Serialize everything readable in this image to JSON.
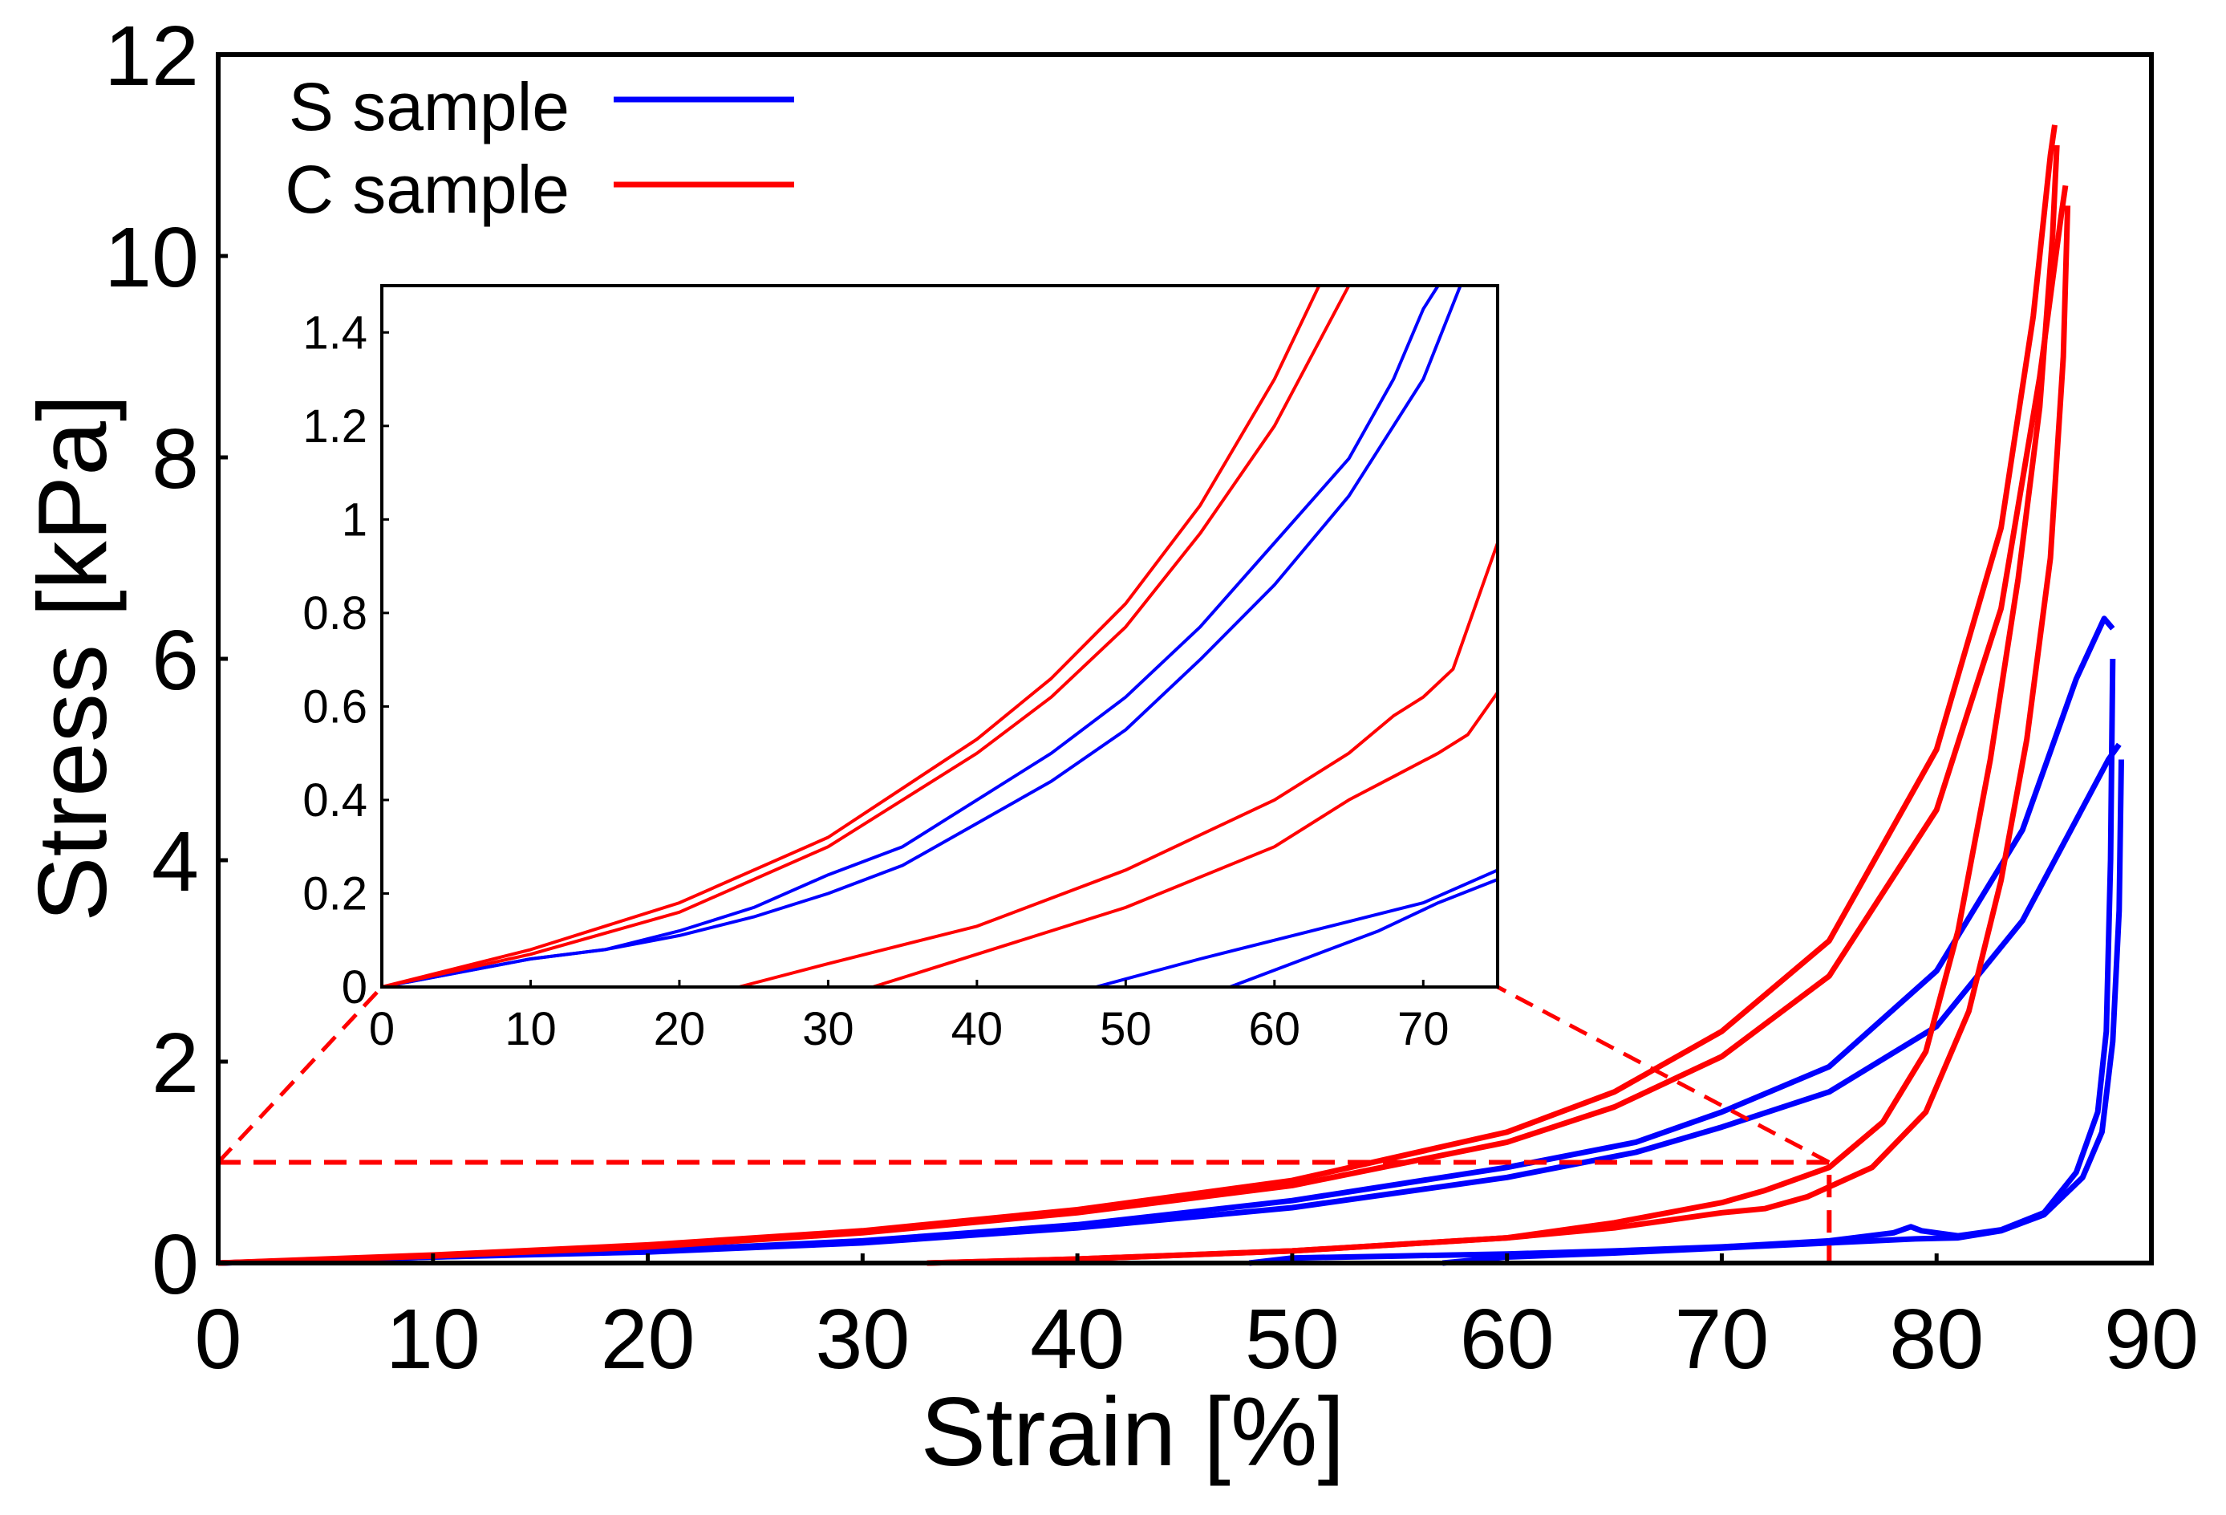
{
  "chart_data": [
    {
      "id": "main",
      "type": "line",
      "xlabel": "Strain [%]",
      "ylabel": "Stress [kPa]",
      "xlim": [
        0,
        90
      ],
      "ylim": [
        0,
        12
      ],
      "xticks": [
        "0",
        "10",
        "20",
        "30",
        "40",
        "50",
        "60",
        "70",
        "80",
        "90"
      ],
      "yticks": [
        "0",
        "2",
        "4",
        "6",
        "8",
        "10",
        "12"
      ],
      "legend_position": "top-left",
      "grid": false,
      "series": [
        {
          "name": "S sample",
          "color": "#0000ff",
          "cycles": [
            {
              "load": [
                [
                  0,
                  0
                ],
                [
                  10,
                  0.06
                ],
                [
                  20,
                  0.12
                ],
                [
                  30,
                  0.22
                ],
                [
                  40,
                  0.38
                ],
                [
                  50,
                  0.62
                ],
                [
                  60,
                  0.95
                ],
                [
                  66,
                  1.2
                ],
                [
                  70,
                  1.5
                ],
                [
                  75,
                  1.95
                ],
                [
                  80,
                  2.9
                ],
                [
                  84,
                  4.3
                ],
                [
                  86.5,
                  5.8
                ],
                [
                  87.8,
                  6.4
                ],
                [
                  88.2,
                  6.3
                ]
              ],
              "unload": [
                [
                  88.2,
                  6.0
                ],
                [
                  88.1,
                  4.0
                ],
                [
                  87.9,
                  2.3
                ],
                [
                  87.5,
                  1.5
                ],
                [
                  86.5,
                  0.9
                ],
                [
                  85,
                  0.5
                ],
                [
                  83,
                  0.33
                ],
                [
                  81,
                  0.27
                ],
                [
                  79.3,
                  0.32
                ],
                [
                  78.8,
                  0.36
                ],
                [
                  78,
                  0.3
                ],
                [
                  75,
                  0.22
                ],
                [
                  70,
                  0.16
                ],
                [
                  65,
                  0.12
                ],
                [
                  60,
                  0.09
                ],
                [
                  55,
                  0.07
                ],
                [
                  50,
                  0.05
                ],
                [
                  48,
                  0.0
                ]
              ]
            },
            {
              "load": [
                [
                  0,
                  0
                ],
                [
                  10,
                  0.06
                ],
                [
                  20,
                  0.11
                ],
                [
                  30,
                  0.2
                ],
                [
                  40,
                  0.35
                ],
                [
                  50,
                  0.55
                ],
                [
                  60,
                  0.85
                ],
                [
                  66,
                  1.1
                ],
                [
                  70,
                  1.35
                ],
                [
                  75,
                  1.7
                ],
                [
                  80,
                  2.35
                ],
                [
                  84,
                  3.4
                ],
                [
                  86.5,
                  4.4
                ],
                [
                  88,
                  5.0
                ],
                [
                  88.5,
                  5.15
                ]
              ],
              "unload": [
                [
                  88.6,
                  5.0
                ],
                [
                  88.5,
                  3.5
                ],
                [
                  88.2,
                  2.2
                ],
                [
                  87.7,
                  1.3
                ],
                [
                  86.8,
                  0.85
                ],
                [
                  85,
                  0.48
                ],
                [
                  83,
                  0.32
                ],
                [
                  81,
                  0.25
                ],
                [
                  79,
                  0.24
                ],
                [
                  75,
                  0.2
                ],
                [
                  70,
                  0.15
                ],
                [
                  65,
                  0.1
                ],
                [
                  60,
                  0.06
                ],
                [
                  57,
                  0.0
                ]
              ]
            }
          ]
        },
        {
          "name": "C sample",
          "color": "#ff0000",
          "cycles": [
            {
              "load": [
                [
                  0,
                  0
                ],
                [
                  10,
                  0.08
                ],
                [
                  20,
                  0.18
                ],
                [
                  30,
                  0.32
                ],
                [
                  40,
                  0.53
                ],
                [
                  50,
                  0.82
                ],
                [
                  60,
                  1.3
                ],
                [
                  65,
                  1.7
                ],
                [
                  70,
                  2.3
                ],
                [
                  75,
                  3.2
                ],
                [
                  80,
                  5.1
                ],
                [
                  83,
                  7.3
                ],
                [
                  84.5,
                  9.4
                ],
                [
                  85.3,
                  11.0
                ],
                [
                  85.5,
                  11.3
                ]
              ],
              "unload": [
                [
                  85.6,
                  11.1
                ],
                [
                  85.4,
                  10.2
                ],
                [
                  84.8,
                  8.5
                ],
                [
                  83.8,
                  6.8
                ],
                [
                  82.5,
                  5.0
                ],
                [
                  81,
                  3.3
                ],
                [
                  79.5,
                  2.1
                ],
                [
                  77.5,
                  1.4
                ],
                [
                  75,
                  0.95
                ],
                [
                  72,
                  0.72
                ],
                [
                  70,
                  0.6
                ],
                [
                  65,
                  0.4
                ],
                [
                  60,
                  0.25
                ],
                [
                  50,
                  0.12
                ],
                [
                  40,
                  0.04
                ],
                [
                  33,
                  0.0
                ]
              ]
            },
            {
              "load": [
                [
                  0,
                  0
                ],
                [
                  10,
                  0.07
                ],
                [
                  20,
                  0.16
                ],
                [
                  30,
                  0.3
                ],
                [
                  40,
                  0.5
                ],
                [
                  50,
                  0.77
                ],
                [
                  60,
                  1.2
                ],
                [
                  65,
                  1.55
                ],
                [
                  70,
                  2.05
                ],
                [
                  75,
                  2.85
                ],
                [
                  80,
                  4.5
                ],
                [
                  83,
                  6.5
                ],
                [
                  84.8,
                  8.8
                ],
                [
                  85.8,
                  10.4
                ],
                [
                  86,
                  10.7
                ]
              ],
              "unload": [
                [
                  86.1,
                  10.5
                ],
                [
                  85.9,
                  9.0
                ],
                [
                  85.3,
                  7.0
                ],
                [
                  84.2,
                  5.2
                ],
                [
                  83,
                  3.8
                ],
                [
                  81.5,
                  2.5
                ],
                [
                  79.5,
                  1.5
                ],
                [
                  77,
                  0.95
                ],
                [
                  74,
                  0.66
                ],
                [
                  72,
                  0.54
                ],
                [
                  70,
                  0.5
                ],
                [
                  65,
                  0.35
                ],
                [
                  60,
                  0.25
                ],
                [
                  50,
                  0.12
                ],
                [
                  40,
                  0.04
                ],
                [
                  33,
                  0.0
                ]
              ]
            }
          ]
        }
      ],
      "inset_region": {
        "x": [
          0,
          75
        ],
        "y": [
          0,
          1
        ]
      }
    },
    {
      "id": "inset",
      "type": "line",
      "xlim": [
        0,
        75
      ],
      "ylim": [
        0,
        1.5
      ],
      "xticks": [
        "0",
        "10",
        "20",
        "30",
        "40",
        "50",
        "60",
        "70"
      ],
      "yticks": [
        "0",
        "0.2",
        "0.4",
        "0.6",
        "0.8",
        "1",
        "1.2",
        "1.4"
      ],
      "grid": false,
      "series": [
        {
          "name": "S sample",
          "color": "#0000ff",
          "curves": [
            [
              [
                0,
                0
              ],
              [
                5,
                0.03
              ],
              [
                10,
                0.06
              ],
              [
                15,
                0.08
              ],
              [
                20,
                0.12
              ],
              [
                25,
                0.17
              ],
              [
                30,
                0.24
              ],
              [
                35,
                0.3
              ],
              [
                40,
                0.4
              ],
              [
                45,
                0.5
              ],
              [
                50,
                0.62
              ],
              [
                55,
                0.77
              ],
              [
                60,
                0.95
              ],
              [
                65,
                1.13
              ],
              [
                68,
                1.3
              ],
              [
                70,
                1.45
              ],
              [
                71,
                1.5
              ]
            ],
            [
              [
                0,
                0
              ],
              [
                5,
                0.03
              ],
              [
                10,
                0.06
              ],
              [
                15,
                0.08
              ],
              [
                20,
                0.11
              ],
              [
                25,
                0.15
              ],
              [
                30,
                0.2
              ],
              [
                35,
                0.26
              ],
              [
                40,
                0.35
              ],
              [
                45,
                0.44
              ],
              [
                50,
                0.55
              ],
              [
                55,
                0.7
              ],
              [
                60,
                0.86
              ],
              [
                65,
                1.05
              ],
              [
                70,
                1.3
              ],
              [
                72.5,
                1.5
              ]
            ],
            [
              [
                48,
                0
              ],
              [
                55,
                0.06
              ],
              [
                60,
                0.1
              ],
              [
                65,
                0.14
              ],
              [
                70,
                0.18
              ],
              [
                75,
                0.25
              ]
            ],
            [
              [
                57,
                0
              ],
              [
                62,
                0.06
              ],
              [
                67,
                0.12
              ],
              [
                71,
                0.18
              ],
              [
                75,
                0.23
              ]
            ]
          ]
        },
        {
          "name": "C sample",
          "color": "#ff0000",
          "curves": [
            [
              [
                0,
                0
              ],
              [
                10,
                0.08
              ],
              [
                20,
                0.18
              ],
              [
                30,
                0.32
              ],
              [
                40,
                0.53
              ],
              [
                45,
                0.66
              ],
              [
                50,
                0.82
              ],
              [
                55,
                1.03
              ],
              [
                60,
                1.3
              ],
              [
                63,
                1.5
              ]
            ],
            [
              [
                0,
                0
              ],
              [
                10,
                0.07
              ],
              [
                20,
                0.16
              ],
              [
                30,
                0.3
              ],
              [
                40,
                0.5
              ],
              [
                45,
                0.62
              ],
              [
                50,
                0.77
              ],
              [
                55,
                0.97
              ],
              [
                60,
                1.2
              ],
              [
                65,
                1.5
              ]
            ],
            [
              [
                24,
                0
              ],
              [
                30,
                0.05
              ],
              [
                40,
                0.13
              ],
              [
                50,
                0.25
              ],
              [
                60,
                0.4
              ],
              [
                65,
                0.5
              ],
              [
                68,
                0.58
              ],
              [
                70,
                0.62
              ],
              [
                72,
                0.68
              ],
              [
                75,
                0.95
              ]
            ],
            [
              [
                33,
                0
              ],
              [
                40,
                0.07
              ],
              [
                50,
                0.17
              ],
              [
                60,
                0.3
              ],
              [
                65,
                0.4
              ],
              [
                68,
                0.45
              ],
              [
                71,
                0.5
              ],
              [
                73,
                0.54
              ],
              [
                75,
                0.63
              ]
            ]
          ]
        }
      ]
    }
  ],
  "legend": [
    {
      "label": "S sample",
      "color": "#0000ff"
    },
    {
      "label": "C sample",
      "color": "#ff0000"
    }
  ]
}
